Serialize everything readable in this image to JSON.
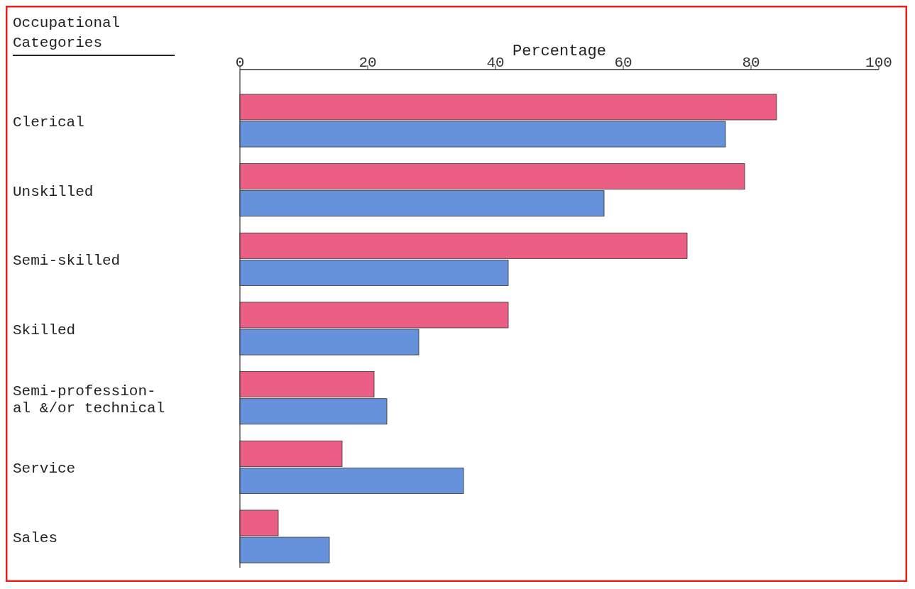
{
  "chart_data": {
    "type": "bar",
    "orientation": "horizontal",
    "xlabel": "Percentage",
    "ylabel": "Occupational Categories",
    "categories": [
      "Clerical",
      "Unskilled",
      "Semi-skilled",
      "Skilled",
      "Semi-profession-al &/or technical",
      "Service",
      "Sales"
    ],
    "series": [
      {
        "color": "#e8436e",
        "values": [
          84,
          79,
          70,
          42,
          21,
          16,
          6
        ]
      },
      {
        "color": "#4a7fd4",
        "values": [
          76,
          57,
          42,
          28,
          23,
          35,
          14
        ]
      }
    ],
    "xlim": [
      0,
      100
    ],
    "xticks": [
      0,
      20,
      40,
      60,
      80,
      100
    ],
    "grid": false
  }
}
